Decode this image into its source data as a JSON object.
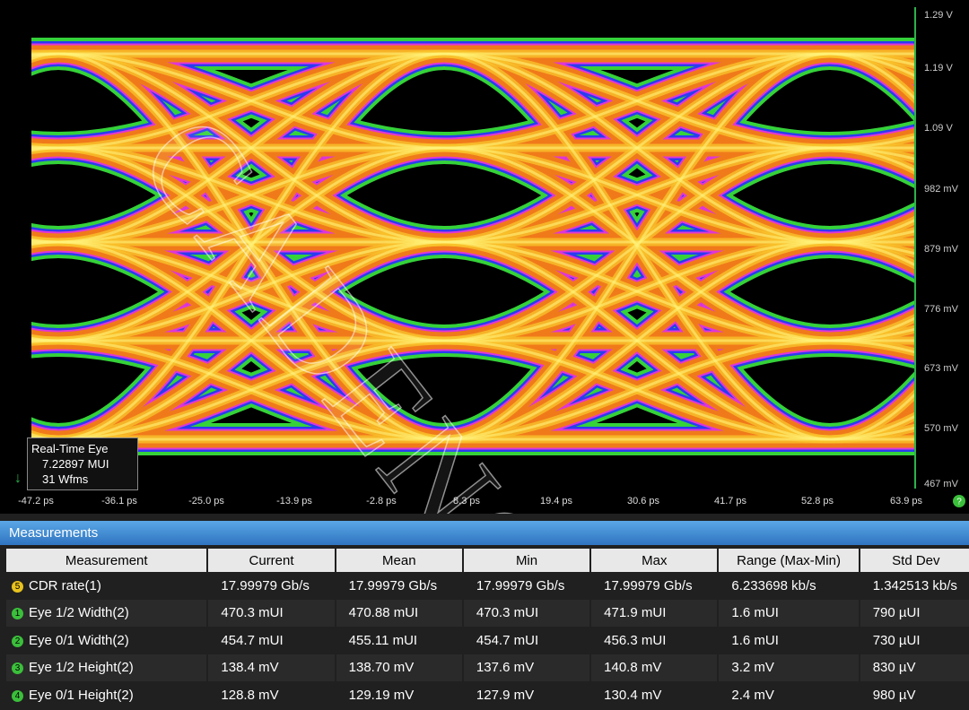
{
  "display": {
    "y_labels": [
      "1.29 V",
      "1.19 V",
      "1.09 V",
      "982 mV",
      "879 mV",
      "776 mV",
      "673 mV",
      "570 mV",
      "467 mV"
    ],
    "x_labels": [
      "-47.2 ps",
      "-36.1 ps",
      "-25.0 ps",
      "-13.9 ps",
      "-2.8 ps",
      "8.3 ps",
      "19.4 ps",
      "30.6 ps",
      "41.7 ps",
      "52.8 ps",
      "63.9 ps"
    ],
    "info": [
      "Real-Time Eye",
      "7.22897 MUI",
      "31 Wfms"
    ],
    "watermark": "CADENCE"
  },
  "measurements": {
    "title": "Measurements",
    "columns": [
      "Measurement",
      "Current",
      "Mean",
      "Min",
      "Max",
      "Range (Max-Min)",
      "Std Dev"
    ],
    "rows": [
      {
        "badge": "5",
        "cells": [
          "CDR rate(1)",
          "17.99979 Gb/s",
          "17.99979 Gb/s",
          "17.99979 Gb/s",
          "17.99979 Gb/s",
          "6.233698 kb/s",
          "1.342513 kb/s"
        ]
      },
      {
        "badge": "1",
        "cells": [
          "Eye 1/2 Width(2)",
          "470.3 mUI",
          "470.88 mUI",
          "470.3 mUI",
          "471.9 mUI",
          "1.6 mUI",
          "790 µUI"
        ]
      },
      {
        "badge": "2",
        "cells": [
          "Eye 0/1 Width(2)",
          "454.7 mUI",
          "455.11 mUI",
          "454.7 mUI",
          "456.3 mUI",
          "1.6 mUI",
          "730 µUI"
        ]
      },
      {
        "badge": "3",
        "cells": [
          "Eye 1/2 Height(2)",
          "138.4 mV",
          "138.70 mV",
          "137.6 mV",
          "140.8 mV",
          "3.2 mV",
          "830 µV"
        ]
      },
      {
        "badge": "4",
        "cells": [
          "Eye 0/1 Height(2)",
          "128.8 mV",
          "129.19 mV",
          "127.9 mV",
          "130.4 mV",
          "2.4 mV",
          "980 µV"
        ]
      }
    ]
  }
}
